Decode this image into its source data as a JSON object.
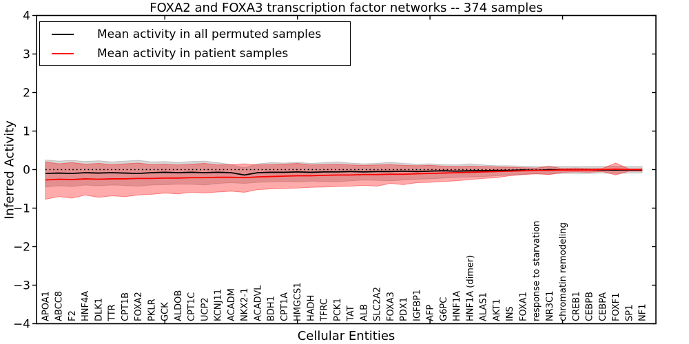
{
  "figure": {
    "title": "FOXA2 and FOXA3 transcription factor networks -- 374 samples",
    "xlabel": "Cellular Entities",
    "ylabel": "Inferred Activity"
  },
  "legend": {
    "position": "upper left",
    "items": [
      {
        "label": "Mean activity in all permuted samples",
        "color": "#000000"
      },
      {
        "label": "Mean activity in patient samples",
        "color": "#ff0000"
      }
    ]
  },
  "chart_data": {
    "type": "line",
    "title": "FOXA2 and FOXA3 transcription factor networks -- 374 samples",
    "xlabel": "Cellular Entities",
    "ylabel": "Inferred Activity",
    "ylim": [
      -4,
      4
    ],
    "yticks": [
      -4,
      -3,
      -2,
      -1,
      0,
      1,
      2,
      3,
      4
    ],
    "ytick_labels": [
      "−4",
      "−3",
      "−2",
      "−1",
      "0",
      "1",
      "2",
      "3",
      "4"
    ],
    "xtick_marks_at_indices": [
      9,
      19,
      29,
      39
    ],
    "grid": false,
    "legend_position": "upper left",
    "zero_line": {
      "style": "dotted",
      "color": "#000000",
      "y": 0
    },
    "categories": [
      "APOA1",
      "ABCC8",
      "F2",
      "HNF4A",
      "DLK1",
      "TTR",
      "CPT1B",
      "FOXA2",
      "PKLR",
      "GCK",
      "ALDOB",
      "CPT1C",
      "UCP2",
      "KCNJ11",
      "ACADM",
      "NKX2-1",
      "ACADVL",
      "BDH1",
      "CPT1A",
      "HMGCS1",
      "HADH",
      "TFRC",
      "PCK1",
      "TAT",
      "ALB",
      "SLC2A2",
      "FOXA3",
      "PDX1",
      "IGFBP1",
      "AFP",
      "G6PC",
      "HNF1A",
      "HNF1A (dimer)",
      "ALAS1",
      "AKT1",
      "INS",
      "FOXA1",
      "response to starvation",
      "NR3C1",
      "chromatin remodeling",
      "CREB1",
      "CEBPB",
      "CEBPA",
      "FOXF1",
      "SP1",
      "NF1"
    ],
    "series": [
      {
        "name": "Mean activity in all permuted samples",
        "key": "permuted",
        "color": "#000000",
        "values": [
          -0.1,
          -0.09,
          -0.1,
          -0.08,
          -0.09,
          -0.08,
          -0.09,
          -0.1,
          -0.08,
          -0.07,
          -0.08,
          -0.07,
          -0.08,
          -0.07,
          -0.08,
          -0.14,
          -0.08,
          -0.07,
          -0.07,
          -0.06,
          -0.07,
          -0.06,
          -0.06,
          -0.05,
          -0.06,
          -0.05,
          -0.05,
          -0.04,
          -0.05,
          -0.04,
          -0.03,
          -0.04,
          -0.03,
          -0.03,
          -0.02,
          -0.02,
          -0.01,
          -0.02,
          0.0,
          -0.01,
          -0.01,
          -0.01,
          -0.01,
          -0.01,
          -0.01,
          -0.01
        ],
        "band": {
          "upper": [
            0.25,
            0.22,
            0.24,
            0.21,
            0.23,
            0.2,
            0.22,
            0.24,
            0.2,
            0.21,
            0.19,
            0.21,
            0.22,
            0.18,
            0.13,
            0.05,
            0.15,
            0.18,
            0.17,
            0.19,
            0.16,
            0.18,
            0.2,
            0.17,
            0.15,
            0.16,
            0.19,
            0.16,
            0.14,
            0.15,
            0.13,
            0.12,
            0.15,
            0.12,
            0.1,
            0.1,
            0.09,
            0.08,
            0.09,
            0.08,
            0.08,
            0.08,
            0.08,
            0.09,
            0.08,
            0.08
          ],
          "lower": [
            -0.45,
            -0.42,
            -0.44,
            -0.4,
            -0.42,
            -0.4,
            -0.41,
            -0.43,
            -0.4,
            -0.39,
            -0.38,
            -0.38,
            -0.4,
            -0.36,
            -0.34,
            -0.36,
            -0.33,
            -0.32,
            -0.31,
            -0.32,
            -0.3,
            -0.31,
            -0.32,
            -0.29,
            -0.27,
            -0.28,
            -0.29,
            -0.27,
            -0.25,
            -0.24,
            -0.22,
            -0.2,
            -0.19,
            -0.18,
            -0.16,
            -0.14,
            -0.12,
            -0.11,
            -0.12,
            -0.1,
            -0.1,
            -0.1,
            -0.09,
            -0.1,
            -0.09,
            -0.09
          ],
          "color": "#999999",
          "opacity": 0.4
        }
      },
      {
        "name": "Mean activity in patient samples",
        "key": "patient",
        "color": "#ff0000",
        "values": [
          -0.27,
          -0.25,
          -0.26,
          -0.24,
          -0.25,
          -0.24,
          -0.24,
          -0.23,
          -0.23,
          -0.22,
          -0.22,
          -0.21,
          -0.21,
          -0.2,
          -0.2,
          -0.21,
          -0.19,
          -0.18,
          -0.17,
          -0.16,
          -0.16,
          -0.15,
          -0.14,
          -0.14,
          -0.13,
          -0.13,
          -0.12,
          -0.12,
          -0.11,
          -0.1,
          -0.09,
          -0.08,
          -0.07,
          -0.06,
          -0.05,
          -0.04,
          -0.03,
          -0.02,
          -0.02,
          -0.01,
          -0.01,
          -0.01,
          0.0,
          0.01,
          0.0,
          0.0
        ],
        "band": {
          "upper": [
            0.2,
            0.15,
            0.18,
            0.14,
            0.16,
            0.13,
            0.15,
            0.17,
            0.13,
            0.14,
            0.12,
            0.14,
            0.16,
            0.12,
            0.13,
            0.15,
            0.12,
            0.13,
            0.14,
            0.16,
            0.12,
            0.13,
            0.14,
            0.12,
            0.11,
            0.12,
            0.13,
            0.11,
            0.1,
            0.11,
            0.09,
            0.08,
            0.09,
            0.08,
            0.07,
            0.06,
            0.05,
            0.04,
            0.08,
            0.03,
            0.04,
            0.03,
            0.03,
            0.17,
            0.02,
            0.02
          ],
          "lower": [
            -0.77,
            -0.7,
            -0.74,
            -0.66,
            -0.72,
            -0.68,
            -0.7,
            -0.66,
            -0.64,
            -0.61,
            -0.63,
            -0.59,
            -0.61,
            -0.58,
            -0.56,
            -0.59,
            -0.52,
            -0.5,
            -0.49,
            -0.48,
            -0.46,
            -0.45,
            -0.44,
            -0.43,
            -0.41,
            -0.43,
            -0.36,
            -0.39,
            -0.34,
            -0.33,
            -0.31,
            -0.29,
            -0.26,
            -0.23,
            -0.21,
            -0.16,
            -0.13,
            -0.11,
            -0.13,
            -0.07,
            -0.06,
            -0.07,
            -0.05,
            -0.14,
            -0.04,
            -0.04
          ],
          "color": "#ff0000",
          "opacity": 0.33
        }
      }
    ]
  }
}
